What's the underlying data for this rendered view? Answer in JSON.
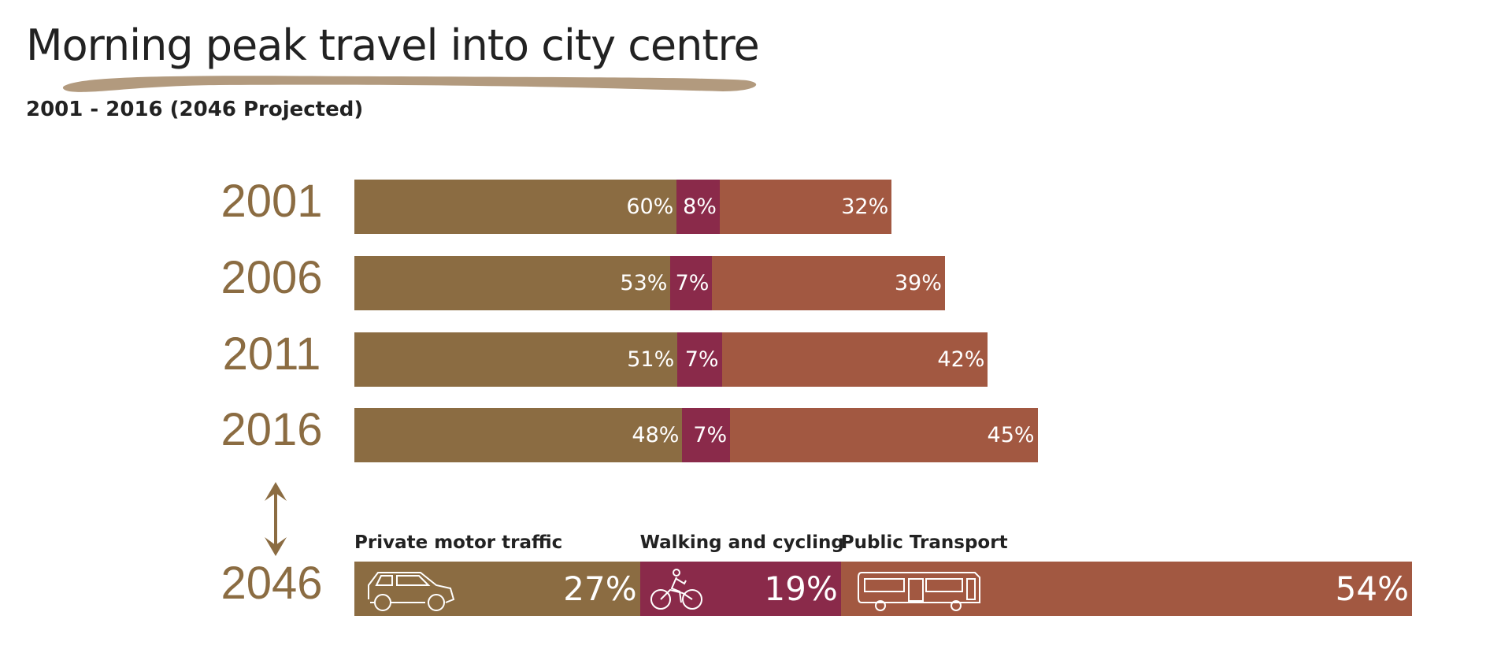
{
  "title": "Morning peak travel into city centre",
  "subtitle": "2001 - 2016  (2046 Projected)",
  "colors": {
    "private": "#8B6C42",
    "active": "#8A2A4A",
    "public": "#A25841",
    "year": "#8B6C42",
    "brush": "#B29A7E"
  },
  "chart_data": {
    "type": "bar",
    "orientation": "horizontal-stacked",
    "title": "Morning peak travel into city centre",
    "subtitle": "2001 - 2016  (2046 Projected)",
    "categories": [
      "2001",
      "2006",
      "2011",
      "2016",
      "2046"
    ],
    "series": [
      {
        "name": "Private motor traffic",
        "values": [
          60,
          53,
          51,
          48,
          27
        ],
        "labels": [
          "60%",
          "53%",
          "51%",
          "48%",
          "27%"
        ],
        "icon": "car-icon"
      },
      {
        "name": "Walking and cycling",
        "values": [
          8,
          7,
          7,
          7,
          19
        ],
        "labels": [
          "8%",
          "7%",
          "7%",
          "7%",
          "19%"
        ],
        "icon": "bicycle-icon"
      },
      {
        "name": "Public Transport",
        "values": [
          32,
          39,
          42,
          45,
          54
        ],
        "labels": [
          "32%",
          "39%",
          "42%",
          "45%",
          "54%"
        ],
        "icon": "bus-icon"
      }
    ],
    "relative_bar_length": [
      0.508,
      0.564,
      0.599,
      0.646,
      1.0
    ],
    "projected_category": "2046",
    "legend_placement": "above last bar",
    "grid": false
  }
}
